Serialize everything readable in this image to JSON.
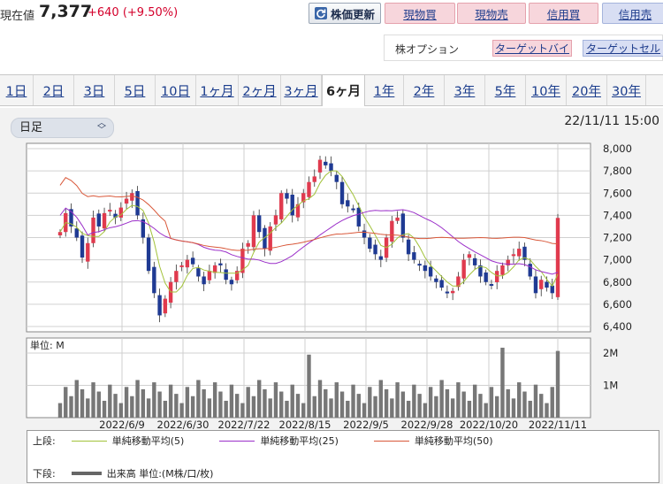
{
  "price": {
    "label": "現在値",
    "value": "7,377",
    "change": "+640 (+9.50%)"
  },
  "toolbar": {
    "update_label": "株価更新",
    "buy_spot": "現物買",
    "sell_spot": "現物売",
    "buy_margin": "信用買",
    "sell_margin": "信用売"
  },
  "options": {
    "label": "株オプション",
    "target_buy": "ターゲットバイ",
    "target_sell": "ターゲットセル"
  },
  "periods": [
    "1日",
    "2日",
    "3日",
    "5日",
    "10日",
    "1ヶ月",
    "2ヶ月",
    "3ヶ月",
    "6ヶ月",
    "1年",
    "2年",
    "3年",
    "5年",
    "10年",
    "20年",
    "30年"
  ],
  "active_period": "6ヶ月",
  "chart_type_select": "日足",
  "timestamp": "22/11/11 15:00",
  "colors": {
    "up": "#e03a4e",
    "down": "#1f3a93",
    "ma5": "#a2c23a",
    "ma25": "#9b2fc9",
    "ma50": "#d9583a",
    "volume": "#777777"
  },
  "chart_data": {
    "type": "candlestick",
    "price_axis": {
      "min": 6400,
      "max": 8000,
      "ticks": [
        6400,
        6600,
        6800,
        7000,
        7200,
        7400,
        7600,
        7800,
        8000
      ],
      "tick_labels": [
        "6,400",
        "6,600",
        "6,800",
        "7,000",
        "7,200",
        "7,400",
        "7,600",
        "7,800",
        "8,000"
      ]
    },
    "volume_axis": {
      "unit_label": "単位: M",
      "ticks": [
        "1M",
        "2M"
      ],
      "tick_values": [
        1,
        2
      ],
      "max": 2.3
    },
    "date_labels": [
      "2022/6/9",
      "2022/6/30",
      "2022/7/22",
      "2022/8/15",
      "2022/9/5",
      "2022/9/28",
      "2022/10/20",
      "2022/11/11"
    ],
    "ohlc_close": [
      7250,
      7420,
      7300,
      7200,
      7020,
      7150,
      7380,
      7300,
      7420,
      7450,
      7380,
      7470,
      7550,
      7600,
      7400,
      7200,
      6900,
      6700,
      6500,
      6650,
      6800,
      6900,
      6950,
      7000,
      6960,
      6850,
      6780,
      6900,
      6950,
      6950,
      6820,
      6780,
      6900,
      7100,
      7150,
      7400,
      7250,
      7100,
      7300,
      7400,
      7600,
      7550,
      7400,
      7500,
      7600,
      7700,
      7750,
      7900,
      7850,
      7800,
      7700,
      7500,
      7480,
      7450,
      7300,
      7200,
      7100,
      7050,
      7000,
      7200,
      7350,
      7380,
      7200,
      7050,
      7000,
      6950,
      6900,
      6850,
      6800,
      6750,
      6700,
      6720,
      6850,
      7000,
      7050,
      6950,
      6850,
      6800,
      6780,
      6900,
      6950,
      7000,
      7050,
      7100,
      7000,
      6850,
      6700,
      6820,
      6750,
      6700,
      7377
    ],
    "ma_labels": {
      "upper": "上段:",
      "ma5": "単純移動平均(5)",
      "ma25": "単純移動平均(25)",
      "ma50": "単純移動平均(50)",
      "lower": "下段:",
      "volume": "出来高 単位:(M株/口/枚)"
    }
  }
}
